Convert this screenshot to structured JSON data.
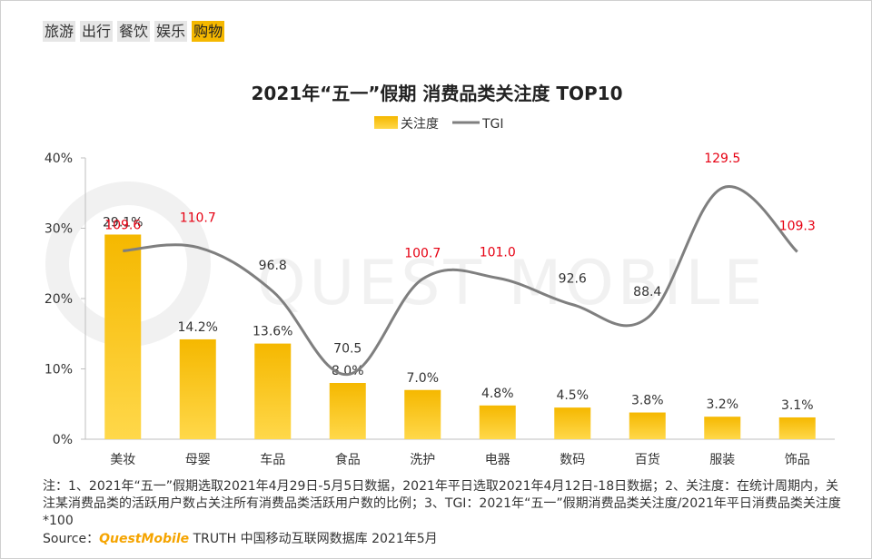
{
  "tabs": [
    {
      "label": "旅游",
      "active": false
    },
    {
      "label": "出行",
      "active": false
    },
    {
      "label": "餐饮",
      "active": false
    },
    {
      "label": "娱乐",
      "active": false
    },
    {
      "label": "购物",
      "active": true
    }
  ],
  "watermark": "QUEST MOBILE",
  "notes": "注：1、2021年“五一”假期选取2021年4月29日-5月5日数据，2021年平日选取2021年4月12日-18日数据；2、关注度：在统计周期内，关注某消费品类的活跃用户数占关注所有消费品类活跃用户数的比例；3、TGI：2021年“五一”假期消费品类关注度/2021年平日消费品类关注度*100",
  "source": {
    "prefix": "Source：",
    "brand": "QuestMobile",
    "suffix": " TRUTH 中国移动互联网数据库 2021年5月"
  },
  "colors": {
    "bar": "#f5b800",
    "bar_light": "#ffd84a",
    "line": "#7f7f7f",
    "tgi_high": "#e60012",
    "tgi_normal": "#333333"
  },
  "chart_data": {
    "type": "bar",
    "title": "2021年“五一”假期 消费品类关注度 TOP10",
    "categories": [
      "美妆",
      "母婴",
      "车品",
      "食品",
      "洗护",
      "电器",
      "数码",
      "百货",
      "服装",
      "饰品"
    ],
    "series": [
      {
        "name": "关注度",
        "type": "bar",
        "values": [
          29.1,
          14.2,
          13.6,
          8.0,
          7.0,
          4.8,
          4.5,
          3.8,
          3.2,
          3.1
        ],
        "labels": [
          "29.1%",
          "14.2%",
          "13.6%",
          "8.0%",
          "7.0%",
          "4.8%",
          "4.5%",
          "3.8%",
          "3.2%",
          "3.1%"
        ]
      },
      {
        "name": "TGI",
        "type": "line",
        "values": [
          109.6,
          110.7,
          96.8,
          70.5,
          100.7,
          101.0,
          92.6,
          88.4,
          129.5,
          109.3
        ],
        "labels": [
          "109.6",
          "110.7",
          "96.8",
          "70.5",
          "100.7",
          "101.0",
          "92.6",
          "88.4",
          "129.5",
          "109.3"
        ]
      }
    ],
    "ylim": [
      0,
      40
    ],
    "yticks": [
      "0%",
      "10%",
      "20%",
      "30%",
      "40%"
    ],
    "legend": "top-center",
    "xlabel": "",
    "ylabel": ""
  }
}
